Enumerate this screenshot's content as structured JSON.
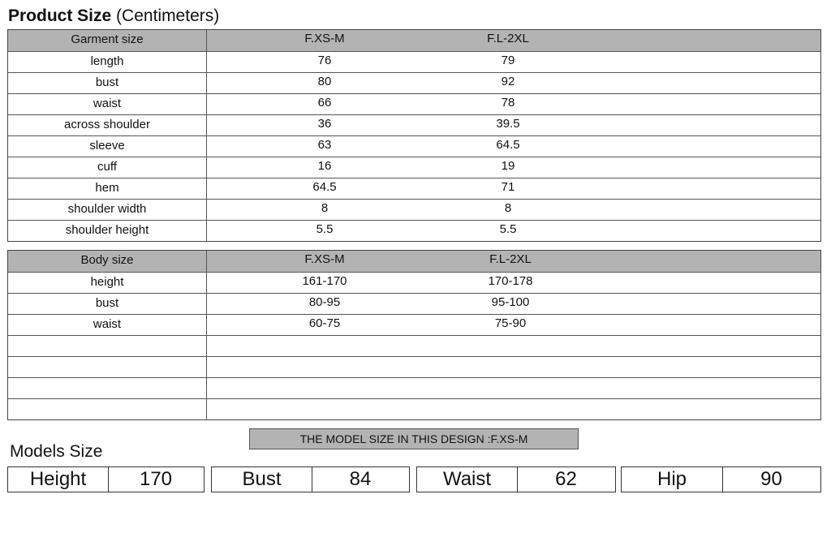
{
  "title": {
    "bold": "Product Size",
    "rest": "(Centimeters)"
  },
  "garment": {
    "header": [
      "Garment size",
      "F.XS-M",
      "F.L-2XL"
    ],
    "rows": [
      [
        "length",
        "76",
        "79"
      ],
      [
        "bust",
        "80",
        "92"
      ],
      [
        "waist",
        "66",
        "78"
      ],
      [
        "across shoulder",
        "36",
        "39.5"
      ],
      [
        "sleeve",
        "63",
        "64.5"
      ],
      [
        "cuff",
        "16",
        "19"
      ],
      [
        "hem",
        "64.5",
        "71"
      ],
      [
        "shoulder width",
        "8",
        "8"
      ],
      [
        "shoulder height",
        "5.5",
        "5.5"
      ]
    ]
  },
  "body": {
    "header": [
      "Body size",
      "F.XS-M",
      "F.L-2XL"
    ],
    "rows": [
      [
        "height",
        "161-170",
        "170-178"
      ],
      [
        "bust",
        "80-95",
        "95-100"
      ],
      [
        "waist",
        "60-75",
        "75-90"
      ],
      [
        "",
        "",
        ""
      ],
      [
        "",
        "",
        ""
      ],
      [
        "",
        "",
        ""
      ],
      [
        "",
        "",
        ""
      ]
    ]
  },
  "banner": "THE MODEL SIZE IN THIS DESIGN :F.XS-M",
  "models_label": "Models Size",
  "models": [
    {
      "label": "Height",
      "value": "170"
    },
    {
      "label": "Bust",
      "value": "84"
    },
    {
      "label": "Waist",
      "value": "62"
    },
    {
      "label": "Hip",
      "value": "90"
    }
  ]
}
